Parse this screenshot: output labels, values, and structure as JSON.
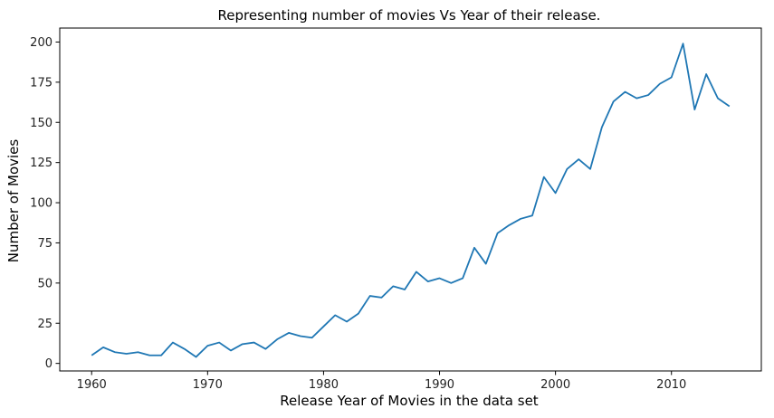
{
  "chart_data": {
    "type": "line",
    "title": "Representing number of movies Vs Year of their release.",
    "xlabel": "Release Year of Movies in the data set",
    "ylabel": "Number of Movies",
    "xlim": [
      1957.25,
      2017.75
    ],
    "ylim": [
      -4.7,
      208.7
    ],
    "xticks": [
      1960,
      1970,
      1980,
      1990,
      2000,
      2010
    ],
    "yticks": [
      0,
      25,
      50,
      75,
      100,
      125,
      150,
      175,
      200
    ],
    "grid": false,
    "legend": "none",
    "series": [
      {
        "color": "#1f77b4",
        "x": [
          1960,
          1961,
          1962,
          1963,
          1964,
          1965,
          1966,
          1967,
          1968,
          1969,
          1970,
          1971,
          1972,
          1973,
          1974,
          1975,
          1976,
          1977,
          1978,
          1979,
          1980,
          1981,
          1982,
          1983,
          1984,
          1985,
          1986,
          1987,
          1988,
          1989,
          1990,
          1991,
          1992,
          1993,
          1994,
          1995,
          1996,
          1997,
          1998,
          1999,
          2000,
          2001,
          2002,
          2003,
          2004,
          2005,
          2006,
          2007,
          2008,
          2009,
          2010,
          2011,
          2012,
          2013,
          2014,
          2015
        ],
        "values": [
          5,
          10,
          7,
          6,
          7,
          5,
          5,
          13,
          9,
          4,
          11,
          13,
          8,
          12,
          13,
          9,
          15,
          19,
          17,
          16,
          23,
          30,
          26,
          31,
          42,
          41,
          48,
          46,
          57,
          51,
          53,
          50,
          53,
          72,
          62,
          81,
          86,
          90,
          92,
          116,
          106,
          121,
          127,
          121,
          147,
          163,
          169,
          165,
          167,
          174,
          178,
          199,
          158,
          180,
          165,
          160
        ]
      }
    ]
  }
}
